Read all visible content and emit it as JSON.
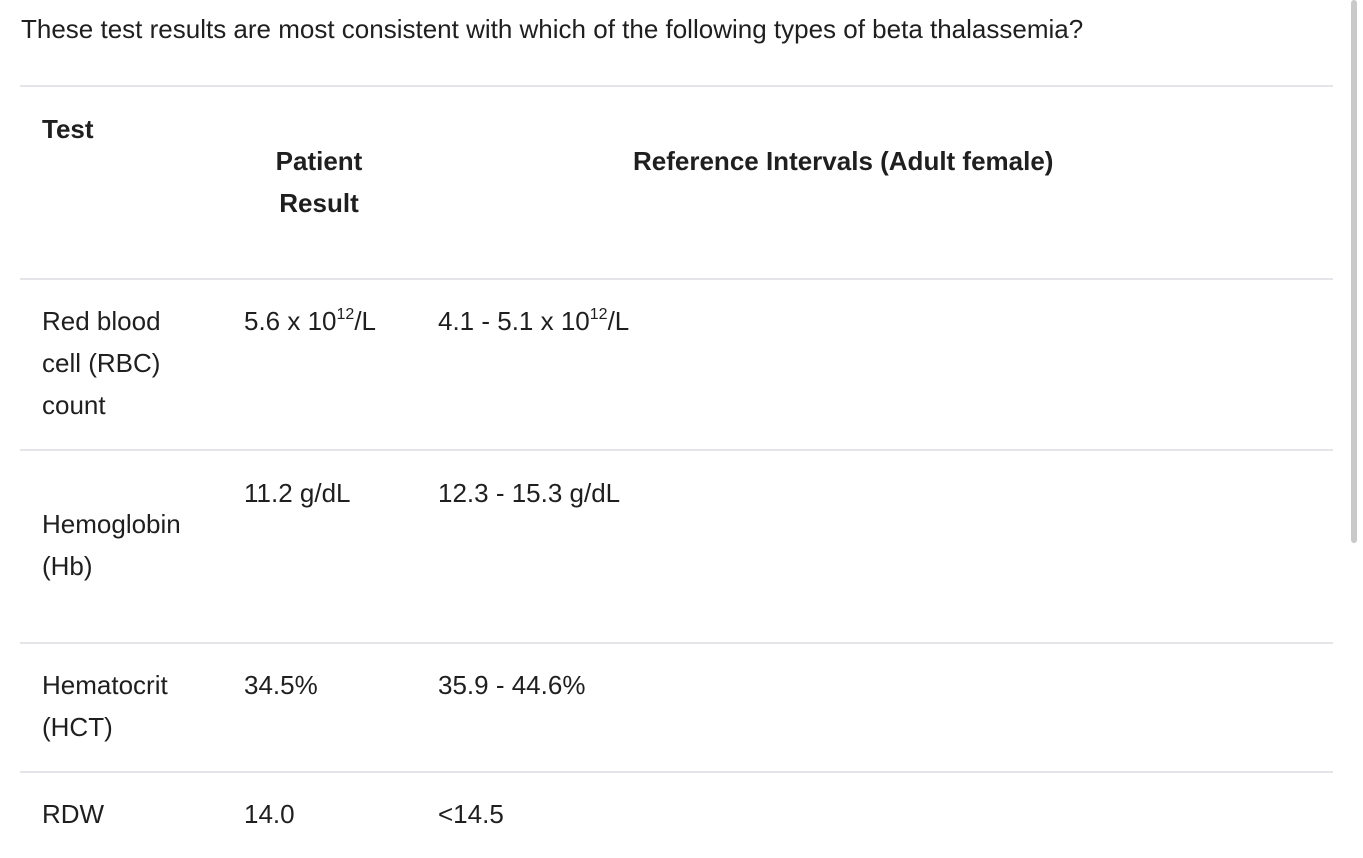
{
  "question": "These test results are most consistent with which of the following types of beta thalassemia?",
  "table": {
    "headers": {
      "test": "Test",
      "patient": "Patient Result",
      "reference": "Reference Intervals (Adult female)"
    },
    "rows": [
      {
        "test": "Red blood cell (RBC) count",
        "patient": {
          "base": "5.6 x 10",
          "exp": "12",
          "unit": "/L"
        },
        "reference": {
          "base": "4.1 - 5.1 x 10",
          "exp": "12",
          "unit": "/L"
        }
      },
      {
        "test": "Hemoglobin (Hb)",
        "patient": "11.2 g/dL",
        "reference": "12.3 - 15.3 g/dL"
      },
      {
        "test": "Hematocrit (HCT)",
        "patient": "34.5%",
        "reference": "35.9 - 44.6%"
      },
      {
        "test": "RDW",
        "patient": "14.0",
        "reference": "<14.5"
      }
    ]
  }
}
